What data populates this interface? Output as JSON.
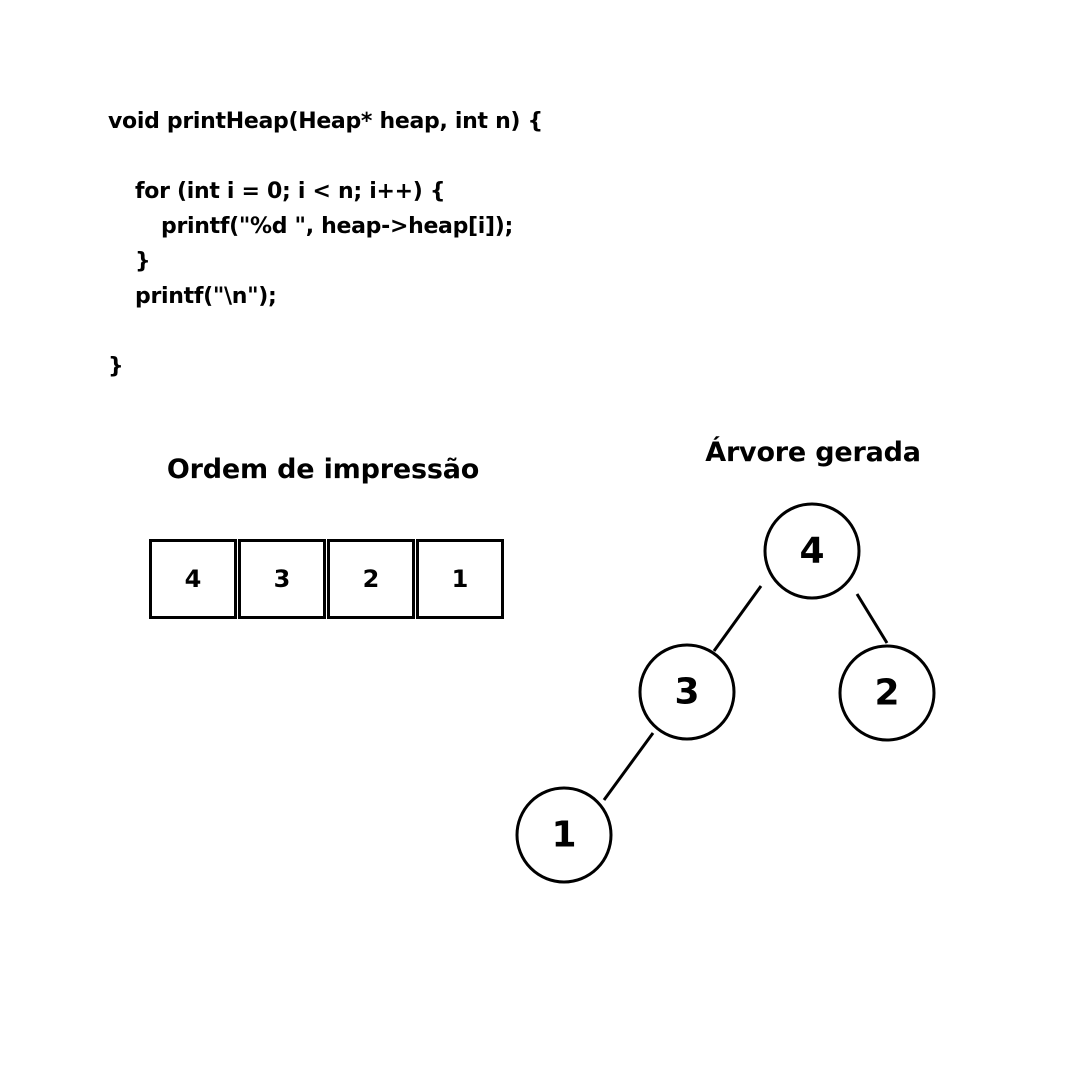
{
  "code": {
    "lines": [
      "void printHeap(Heap* heap, int n) {",
      "",
      "for (int i = 0; i < n; i++) {",
      "printf(\"%d \", heap->heap[i]);",
      "}",
      "printf(\"\\n\");",
      "",
      "}"
    ]
  },
  "array_section": {
    "title": "Ordem de impressão",
    "cells": [
      "4",
      "3",
      "2",
      "1"
    ]
  },
  "tree_section": {
    "title": "Árvore gerada",
    "nodes": [
      {
        "id": "n4",
        "label": "4"
      },
      {
        "id": "n3",
        "label": "3"
      },
      {
        "id": "n2",
        "label": "2"
      },
      {
        "id": "n1",
        "label": "1"
      }
    ],
    "edges": [
      {
        "from": "n4",
        "to": "n3"
      },
      {
        "from": "n4",
        "to": "n2"
      },
      {
        "from": "n3",
        "to": "n1"
      }
    ]
  }
}
